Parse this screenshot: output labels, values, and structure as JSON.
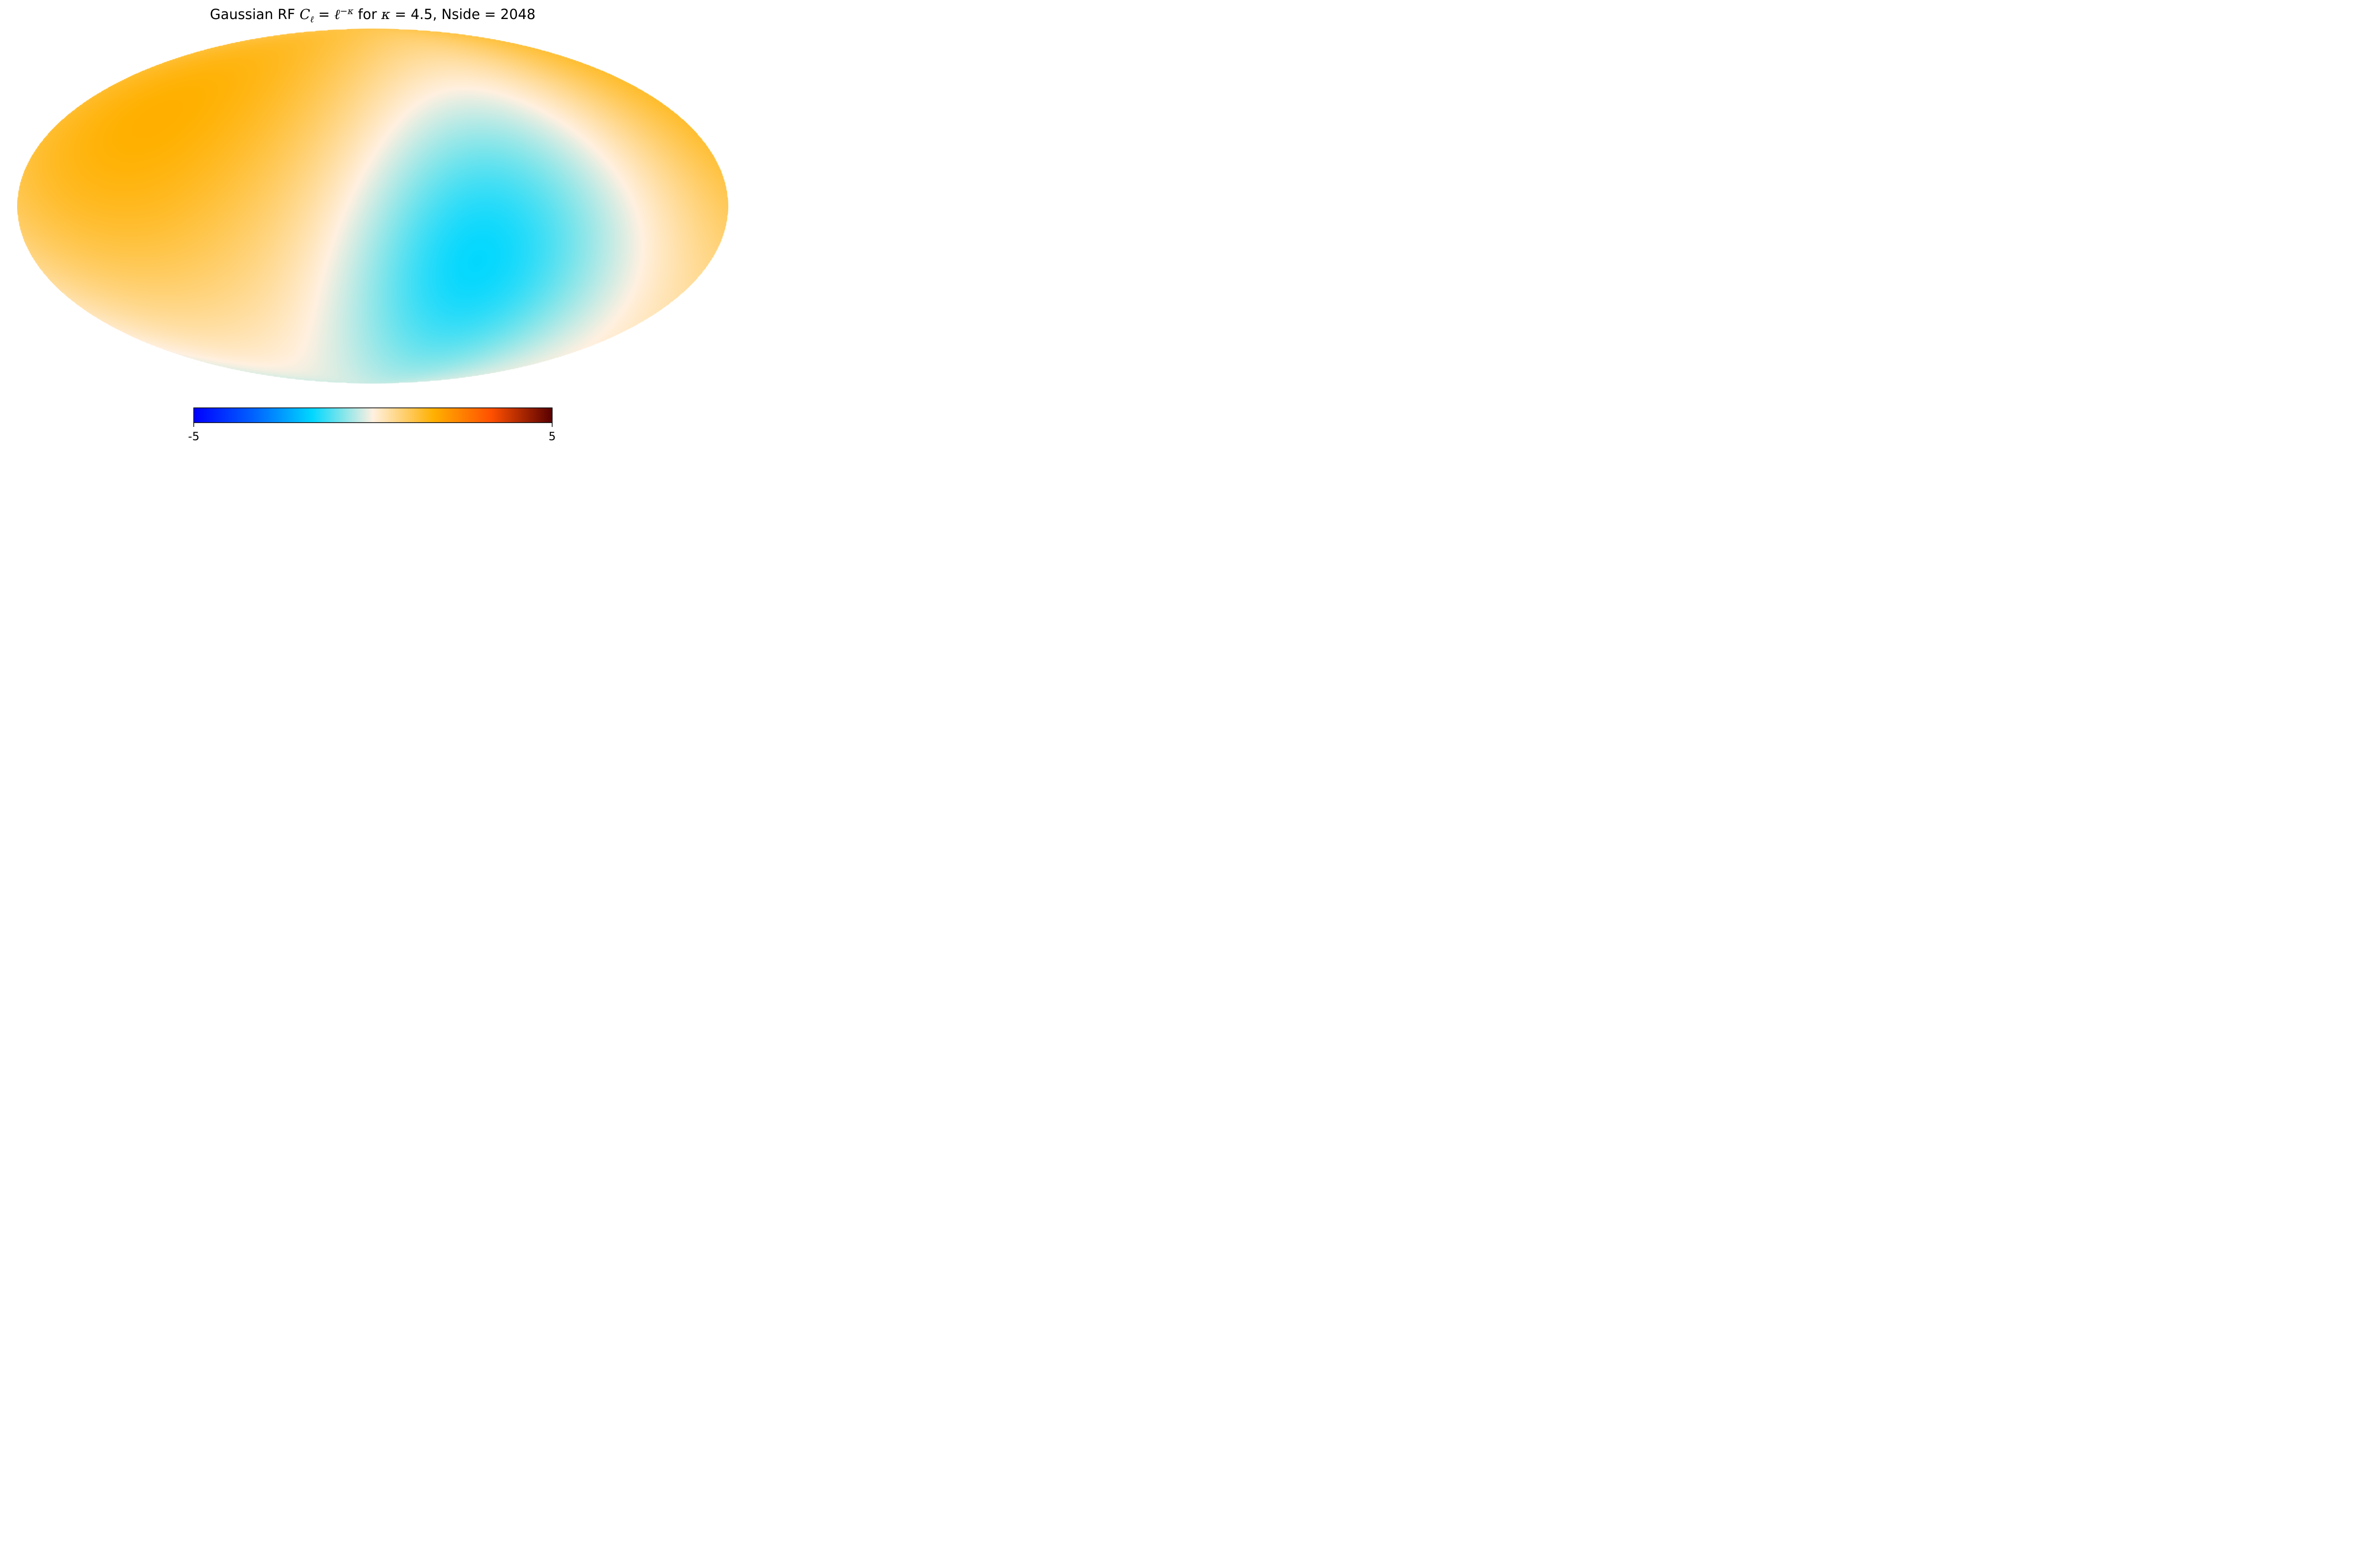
{
  "chart_data": {
    "type": "heatmap",
    "projection": "mollweide",
    "title": {
      "prefix": "Gaussian RF ",
      "C": "C",
      "C_sub": "ℓ",
      "eq1": " = ",
      "ell": "ℓ",
      "ell_sup": "−κ",
      "mid": " for ",
      "kappa": "κ",
      "tail": " = 4.5, Nside  = 2048"
    },
    "colorbar": {
      "orientation": "horizontal",
      "placement": "bottom",
      "vmin": -5,
      "vmax": 5,
      "min_label": "-5",
      "max_label": "5",
      "colormap": [
        {
          "value": -5.0,
          "color": "#0000ff"
        },
        {
          "value": -3.3,
          "color": "#0064ff"
        },
        {
          "value": -1.7,
          "color": "#00d7ff"
        },
        {
          "value": -0.85,
          "color": "#80e5ea"
        },
        {
          "value": 0.0,
          "color": "#fff0e0"
        },
        {
          "value": 0.85,
          "color": "#ffd070"
        },
        {
          "value": 1.7,
          "color": "#ffb000"
        },
        {
          "value": 3.3,
          "color": "#ff5000"
        },
        {
          "value": 5.0,
          "color": "#580000"
        }
      ]
    },
    "field_features": [
      {
        "lon": -70,
        "lat": 2,
        "value": -1.25,
        "width_deg": 60
      },
      {
        "lon": -45,
        "lat": -30,
        "value": -0.9,
        "width_deg": 40
      },
      {
        "lon": 95,
        "lat": 35,
        "value": 0.9,
        "width_deg": 60
      },
      {
        "lon": 150,
        "lat": 10,
        "value": 0.55,
        "width_deg": 50
      },
      {
        "lon": -150,
        "lat": 45,
        "value": 0.55,
        "width_deg": 50
      },
      {
        "lon": 20,
        "lat": 55,
        "value": 0.35,
        "width_deg": 45
      },
      {
        "lon": 60,
        "lat": -45,
        "value": 0.1,
        "width_deg": 40
      },
      {
        "lon": 120,
        "lat": -65,
        "value": -0.15,
        "width_deg": 35
      }
    ],
    "background_value": 0.18
  }
}
